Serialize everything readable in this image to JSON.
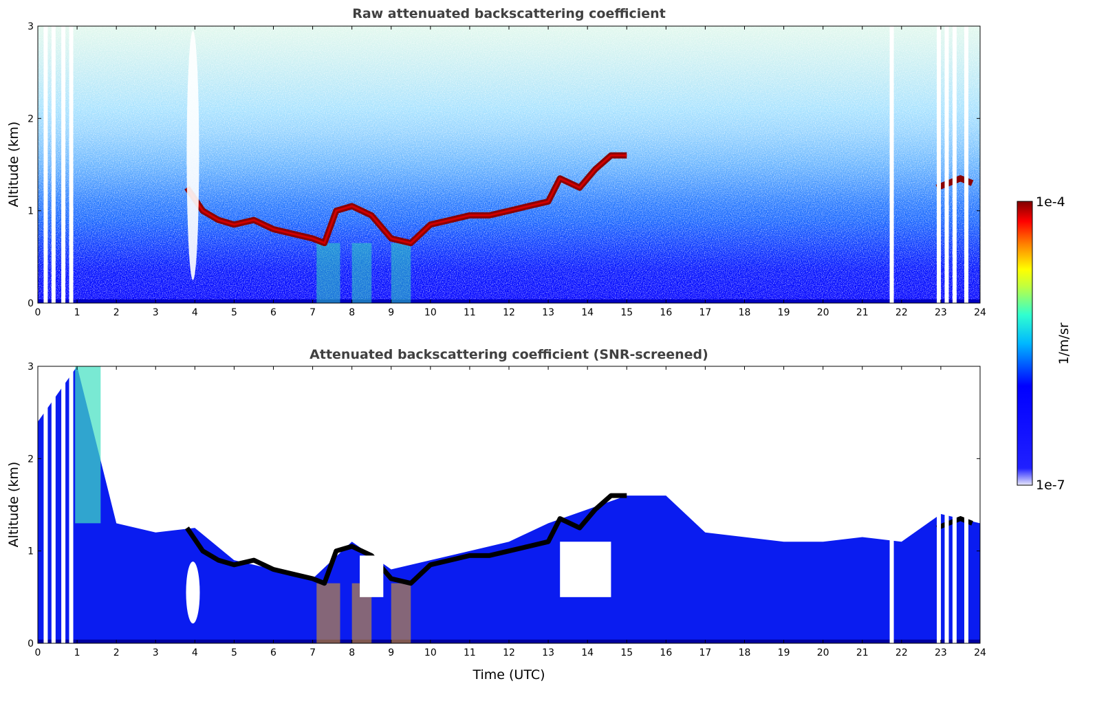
{
  "chart_data": [
    {
      "type": "heatmap",
      "title": "Raw attenuated backscattering coefficient",
      "xlabel": "",
      "ylabel": "Altitude (km)",
      "xlim": [
        0,
        24
      ],
      "ylim": [
        0,
        3
      ],
      "xticks": [
        "0",
        "1",
        "2",
        "3",
        "4",
        "5",
        "6",
        "7",
        "8",
        "9",
        "10",
        "11",
        "12",
        "13",
        "14",
        "15",
        "16",
        "17",
        "18",
        "19",
        "20",
        "21",
        "22",
        "23",
        "24"
      ],
      "yticks": [
        "0",
        "1",
        "2",
        "3"
      ],
      "cloud_layer": {
        "x": [
          3.8,
          4.2,
          4.6,
          5.0,
          5.5,
          6.0,
          6.5,
          7.0,
          7.3,
          7.6,
          8.0,
          8.5,
          9.0,
          9.5,
          10.0,
          10.5,
          11.0,
          11.5,
          12.0,
          12.5,
          13.0,
          13.3,
          13.8,
          14.2,
          14.6,
          15.0
        ],
        "y": [
          1.25,
          1.0,
          0.9,
          0.85,
          0.9,
          0.8,
          0.75,
          0.7,
          0.65,
          1.0,
          1.05,
          0.95,
          0.7,
          0.65,
          0.85,
          0.9,
          0.95,
          0.95,
          1.0,
          1.05,
          1.1,
          1.35,
          1.25,
          1.45,
          1.6,
          1.6
        ],
        "units": "km"
      },
      "second_cloud_layer": {
        "x": [
          22.9,
          23.2,
          23.5,
          23.8
        ],
        "y": [
          1.25,
          1.3,
          1.35,
          1.3
        ],
        "units": "km"
      },
      "gaps_hours": [
        0.2,
        0.4,
        0.65,
        0.85,
        21.75,
        22.95,
        23.15,
        23.35,
        23.65
      ]
    },
    {
      "type": "heatmap",
      "title": "Attenuated backscattering coefficient (SNR-screened)",
      "xlabel": "Time (UTC)",
      "ylabel": "Altitude (km)",
      "xlim": [
        0,
        24
      ],
      "ylim": [
        0,
        3
      ],
      "xticks": [
        "0",
        "1",
        "2",
        "3",
        "4",
        "5",
        "6",
        "7",
        "8",
        "9",
        "10",
        "11",
        "12",
        "13",
        "14",
        "15",
        "16",
        "17",
        "18",
        "19",
        "20",
        "21",
        "22",
        "23",
        "24"
      ],
      "yticks": [
        "0",
        "1",
        "2",
        "3"
      ],
      "boundary_layer_top": {
        "x": [
          0,
          1,
          2,
          3,
          4,
          5,
          6,
          7,
          8,
          9,
          10,
          11,
          12,
          13,
          14,
          15,
          16,
          17,
          18,
          19,
          20,
          21,
          22,
          23,
          24
        ],
        "y": [
          2.4,
          3.0,
          1.3,
          1.2,
          1.25,
          0.9,
          0.8,
          0.7,
          1.1,
          0.8,
          0.9,
          1.0,
          1.1,
          1.3,
          1.45,
          1.6,
          1.6,
          1.2,
          1.15,
          1.1,
          1.1,
          1.15,
          1.1,
          1.4,
          1.3
        ],
        "units": "km"
      }
    }
  ],
  "colorbar": {
    "label": "1/m/sr",
    "max_label": "1e-4",
    "min_label": "1e-7",
    "colormap": [
      "#e6e6fa",
      "#0000ff",
      "#00a0ff",
      "#00ffff",
      "#80ff80",
      "#ffff00",
      "#ff8000",
      "#ff0000",
      "#800000"
    ]
  }
}
